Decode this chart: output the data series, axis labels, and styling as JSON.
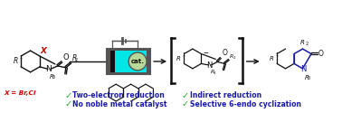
{
  "bg_color": "#ffffff",
  "check_color": "#22aa22",
  "blue_text_color": "#1a1aaa",
  "red_color": "#cc0000",
  "black_color": "#111111",
  "cyan_color": "#00e5e5",
  "gray_color": "#999999",
  "dark_gray": "#555555",
  "bullet1_left": "Two-electron reduction",
  "bullet2_left": "No noble metal catalyst",
  "bullet1_right": "Indirect reduction",
  "bullet2_right": "Selective 6-endo cyclization",
  "x_label": "X = Br,Cl",
  "cat_label": "cat.",
  "figsize": [
    3.78,
    1.25
  ],
  "dpi": 100
}
